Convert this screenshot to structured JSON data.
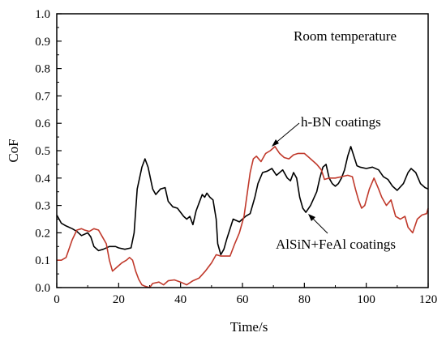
{
  "chart_data": {
    "type": "line",
    "title": "",
    "xlabel": "Time/s",
    "ylabel": "CoF",
    "xlim": [
      0,
      120
    ],
    "ylim": [
      0,
      1.0
    ],
    "xticks": [
      "0",
      "20",
      "40",
      "60",
      "80",
      "100",
      "120"
    ],
    "yticks": [
      "0.0",
      "0.1",
      "0.2",
      "0.3",
      "0.4",
      "0.5",
      "0.6",
      "0.7",
      "0.8",
      "0.9",
      "1.0"
    ],
    "grid": false,
    "annotations": {
      "condition": "Room temperature",
      "hbn": "h-BN coatings",
      "alsin": "AlSiN+FeAl coatings"
    },
    "series": [
      {
        "name": "AlSiN+FeAl coatings",
        "color": "#000000",
        "points": [
          [
            0,
            0.265
          ],
          [
            1.5,
            0.235
          ],
          [
            3,
            0.225
          ],
          [
            5,
            0.215
          ],
          [
            6.5,
            0.205
          ],
          [
            8,
            0.19
          ],
          [
            10,
            0.2
          ],
          [
            11,
            0.185
          ],
          [
            12,
            0.15
          ],
          [
            13.5,
            0.135
          ],
          [
            15,
            0.14
          ],
          [
            17,
            0.15
          ],
          [
            19,
            0.15
          ],
          [
            20,
            0.145
          ],
          [
            22,
            0.14
          ],
          [
            24,
            0.145
          ],
          [
            25,
            0.2
          ],
          [
            26,
            0.36
          ],
          [
            27.5,
            0.44
          ],
          [
            28.5,
            0.47
          ],
          [
            29.5,
            0.44
          ],
          [
            31,
            0.36
          ],
          [
            32,
            0.34
          ],
          [
            33.5,
            0.36
          ],
          [
            35,
            0.365
          ],
          [
            36,
            0.315
          ],
          [
            37.5,
            0.295
          ],
          [
            39,
            0.29
          ],
          [
            41,
            0.26
          ],
          [
            42,
            0.25
          ],
          [
            43,
            0.26
          ],
          [
            44,
            0.23
          ],
          [
            45,
            0.28
          ],
          [
            46,
            0.31
          ],
          [
            47,
            0.34
          ],
          [
            47.8,
            0.33
          ],
          [
            48.5,
            0.345
          ],
          [
            49.5,
            0.33
          ],
          [
            50.5,
            0.32
          ],
          [
            51.5,
            0.25
          ],
          [
            52,
            0.16
          ],
          [
            53,
            0.12
          ],
          [
            54,
            0.14
          ],
          [
            55,
            0.18
          ],
          [
            57,
            0.25
          ],
          [
            59,
            0.24
          ],
          [
            61,
            0.26
          ],
          [
            62.5,
            0.27
          ],
          [
            64,
            0.33
          ],
          [
            65,
            0.38
          ],
          [
            66.5,
            0.42
          ],
          [
            68,
            0.425
          ],
          [
            69.5,
            0.435
          ],
          [
            71,
            0.41
          ],
          [
            73,
            0.43
          ],
          [
            74.5,
            0.4
          ],
          [
            75.5,
            0.39
          ],
          [
            76.5,
            0.42
          ],
          [
            77.5,
            0.4
          ],
          [
            78.5,
            0.33
          ],
          [
            79.5,
            0.29
          ],
          [
            80.5,
            0.275
          ],
          [
            82,
            0.3
          ],
          [
            84,
            0.35
          ],
          [
            85,
            0.4
          ],
          [
            86,
            0.44
          ],
          [
            87,
            0.45
          ],
          [
            88,
            0.4
          ],
          [
            89,
            0.38
          ],
          [
            90,
            0.37
          ],
          [
            91,
            0.38
          ],
          [
            92,
            0.4
          ],
          [
            93,
            0.43
          ],
          [
            94,
            0.48
          ],
          [
            95,
            0.515
          ],
          [
            96,
            0.48
          ],
          [
            97,
            0.445
          ],
          [
            98,
            0.44
          ],
          [
            100,
            0.435
          ],
          [
            102,
            0.44
          ],
          [
            104,
            0.43
          ],
          [
            105.5,
            0.405
          ],
          [
            107,
            0.395
          ],
          [
            108.5,
            0.37
          ],
          [
            110,
            0.355
          ],
          [
            112,
            0.38
          ],
          [
            113.5,
            0.42
          ],
          [
            114.5,
            0.435
          ],
          [
            116,
            0.42
          ],
          [
            117.5,
            0.38
          ],
          [
            119,
            0.365
          ],
          [
            120,
            0.36
          ]
        ]
      },
      {
        "name": "h-BN coatings",
        "color": "#c0392b",
        "points": [
          [
            0,
            0.1
          ],
          [
            1.5,
            0.1
          ],
          [
            3,
            0.11
          ],
          [
            5,
            0.175
          ],
          [
            6.5,
            0.21
          ],
          [
            8,
            0.215
          ],
          [
            9,
            0.21
          ],
          [
            10.5,
            0.205
          ],
          [
            12,
            0.215
          ],
          [
            13.5,
            0.21
          ],
          [
            15,
            0.18
          ],
          [
            16,
            0.16
          ],
          [
            17,
            0.1
          ],
          [
            18,
            0.06
          ],
          [
            19.5,
            0.075
          ],
          [
            21,
            0.09
          ],
          [
            22.5,
            0.1
          ],
          [
            23.5,
            0.11
          ],
          [
            24.5,
            0.1
          ],
          [
            25.5,
            0.06
          ],
          [
            26.5,
            0.03
          ],
          [
            27.5,
            0.01
          ],
          [
            28.5,
            0.005
          ],
          [
            30,
            0.0
          ],
          [
            31,
            0.015
          ],
          [
            33,
            0.02
          ],
          [
            34.5,
            0.01
          ],
          [
            36,
            0.025
          ],
          [
            38,
            0.028
          ],
          [
            40,
            0.02
          ],
          [
            42,
            0.01
          ],
          [
            44,
            0.025
          ],
          [
            46,
            0.035
          ],
          [
            48,
            0.06
          ],
          [
            50,
            0.09
          ],
          [
            51.5,
            0.12
          ],
          [
            53,
            0.115
          ],
          [
            54.5,
            0.115
          ],
          [
            56,
            0.115
          ],
          [
            57.5,
            0.16
          ],
          [
            59,
            0.2
          ],
          [
            60.5,
            0.26
          ],
          [
            61.5,
            0.34
          ],
          [
            62.5,
            0.42
          ],
          [
            63.5,
            0.47
          ],
          [
            64.5,
            0.48
          ],
          [
            66,
            0.46
          ],
          [
            67.5,
            0.49
          ],
          [
            69,
            0.5
          ],
          [
            70.5,
            0.515
          ],
          [
            72,
            0.49
          ],
          [
            73.5,
            0.475
          ],
          [
            75,
            0.47
          ],
          [
            76.5,
            0.485
          ],
          [
            78,
            0.49
          ],
          [
            80,
            0.49
          ],
          [
            82,
            0.47
          ],
          [
            84,
            0.45
          ],
          [
            85.5,
            0.43
          ],
          [
            86.5,
            0.395
          ],
          [
            88,
            0.4
          ],
          [
            90,
            0.4
          ],
          [
            92,
            0.405
          ],
          [
            94,
            0.41
          ],
          [
            95.5,
            0.405
          ],
          [
            96.5,
            0.36
          ],
          [
            97.5,
            0.32
          ],
          [
            98.5,
            0.29
          ],
          [
            99.5,
            0.3
          ],
          [
            101,
            0.36
          ],
          [
            102.5,
            0.4
          ],
          [
            104,
            0.36
          ],
          [
            105,
            0.33
          ],
          [
            106.5,
            0.3
          ],
          [
            108,
            0.32
          ],
          [
            109.5,
            0.26
          ],
          [
            111,
            0.25
          ],
          [
            112.5,
            0.26
          ],
          [
            113.5,
            0.22
          ],
          [
            115,
            0.2
          ],
          [
            116.5,
            0.25
          ],
          [
            118,
            0.265
          ],
          [
            119.5,
            0.27
          ],
          [
            120,
            0.29
          ]
        ]
      }
    ]
  }
}
